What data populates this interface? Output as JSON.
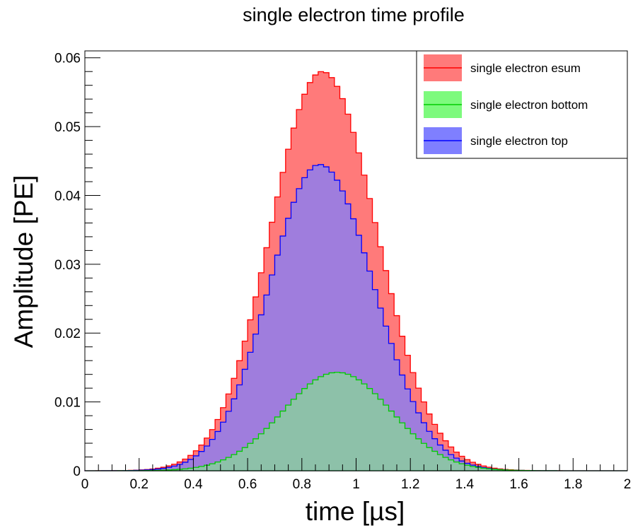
{
  "chart_data": {
    "type": "area",
    "title": "single electron time profile",
    "xlabel": "time [µs]",
    "ylabel": "Amplitude [PE]",
    "xlim": [
      0,
      2
    ],
    "ylim": [
      0,
      0.061
    ],
    "x_ticks": [
      0,
      0.2,
      0.4,
      0.6,
      0.8,
      1,
      1.2,
      1.4,
      1.6,
      1.8,
      2
    ],
    "x_tick_labels": [
      "0",
      "0.2",
      "0.4",
      "0.6",
      "0.8",
      "1",
      "1.2",
      "1.4",
      "1.6",
      "1.8",
      "2"
    ],
    "y_ticks": [
      0,
      0.01,
      0.02,
      0.03,
      0.04,
      0.05,
      0.06
    ],
    "y_tick_labels": [
      "0",
      "0.01",
      "0.02",
      "0.03",
      "0.04",
      "0.05",
      "0.06"
    ],
    "grid": false,
    "legend_position": "top-right",
    "bins": 100,
    "series": [
      {
        "name": "single electron esum",
        "color": "#ff0000",
        "fill": "#ff7a7a",
        "peak_x": 0.875,
        "peak_y": 0.058,
        "sigma_left": 0.19,
        "sigma_right": 0.2
      },
      {
        "name": "single electron bottom",
        "color": "#00cc00",
        "fill": "#7dfa7d",
        "peak_x": 0.93,
        "peak_y": 0.0143,
        "sigma_left": 0.2,
        "sigma_right": 0.2
      },
      {
        "name": "single electron top",
        "color": "#0000ff",
        "fill": "#7f7fff",
        "peak_x": 0.865,
        "peak_y": 0.0445,
        "sigma_left": 0.185,
        "sigma_right": 0.2
      }
    ]
  }
}
